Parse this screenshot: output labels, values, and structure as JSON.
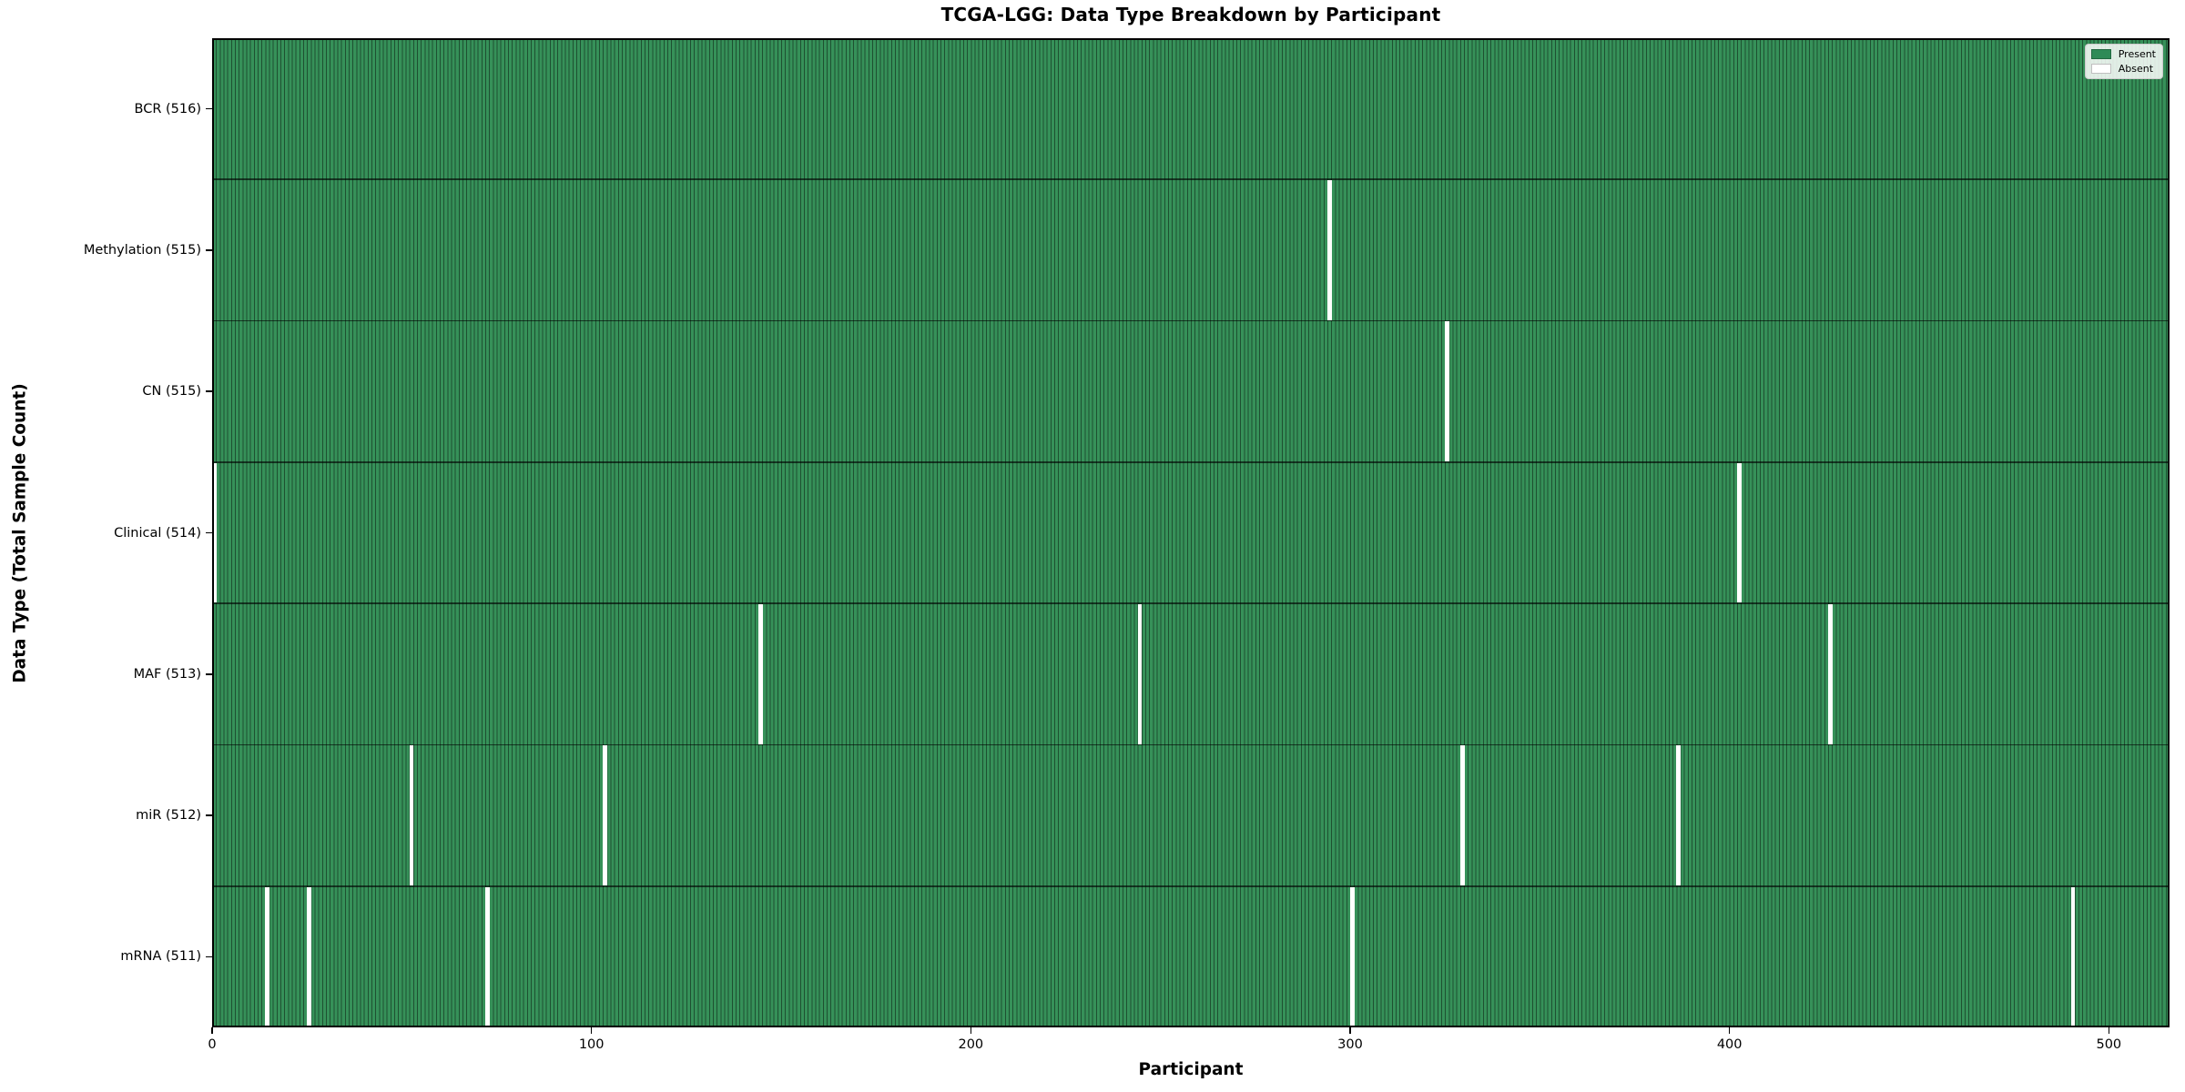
{
  "chart_data": {
    "type": "heatmap",
    "title": "TCGA-LGG: Data Type Breakdown by Participant",
    "xlabel": "Participant",
    "ylabel": "Data Type (Total Sample Count)",
    "n_participants": 516,
    "xlim": [
      0,
      516
    ],
    "xticks": [
      0,
      100,
      200,
      300,
      400,
      500
    ],
    "grid": false,
    "legend_position": "upper right",
    "legend": [
      {
        "label": "Present",
        "color": "#2e8b57"
      },
      {
        "label": "Absent",
        "color": "#ffffff"
      }
    ],
    "colors": {
      "present": "#369159",
      "absent": "#ffffff",
      "cell_edge": "rgba(0,0,0,0.45)",
      "axis": "#000000"
    },
    "rows": [
      {
        "label": "BCR (516)",
        "data_type": "BCR",
        "present_count": 516,
        "absent_participants": []
      },
      {
        "label": "Methylation (515)",
        "data_type": "Methylation",
        "present_count": 515,
        "absent_participants": [
          294
        ]
      },
      {
        "label": "CN (515)",
        "data_type": "CN",
        "present_count": 515,
        "absent_participants": [
          325
        ]
      },
      {
        "label": "Clinical (514)",
        "data_type": "Clinical",
        "present_count": 514,
        "absent_participants": [
          0,
          402
        ]
      },
      {
        "label": "MAF (513)",
        "data_type": "MAF",
        "present_count": 513,
        "absent_participants": [
          144,
          244,
          426
        ]
      },
      {
        "label": "miR (512)",
        "data_type": "miR",
        "present_count": 512,
        "absent_participants": [
          52,
          103,
          329,
          386
        ]
      },
      {
        "label": "mRNA (511)",
        "data_type": "mRNA",
        "present_count": 511,
        "absent_participants": [
          14,
          25,
          72,
          300,
          490
        ]
      }
    ]
  }
}
